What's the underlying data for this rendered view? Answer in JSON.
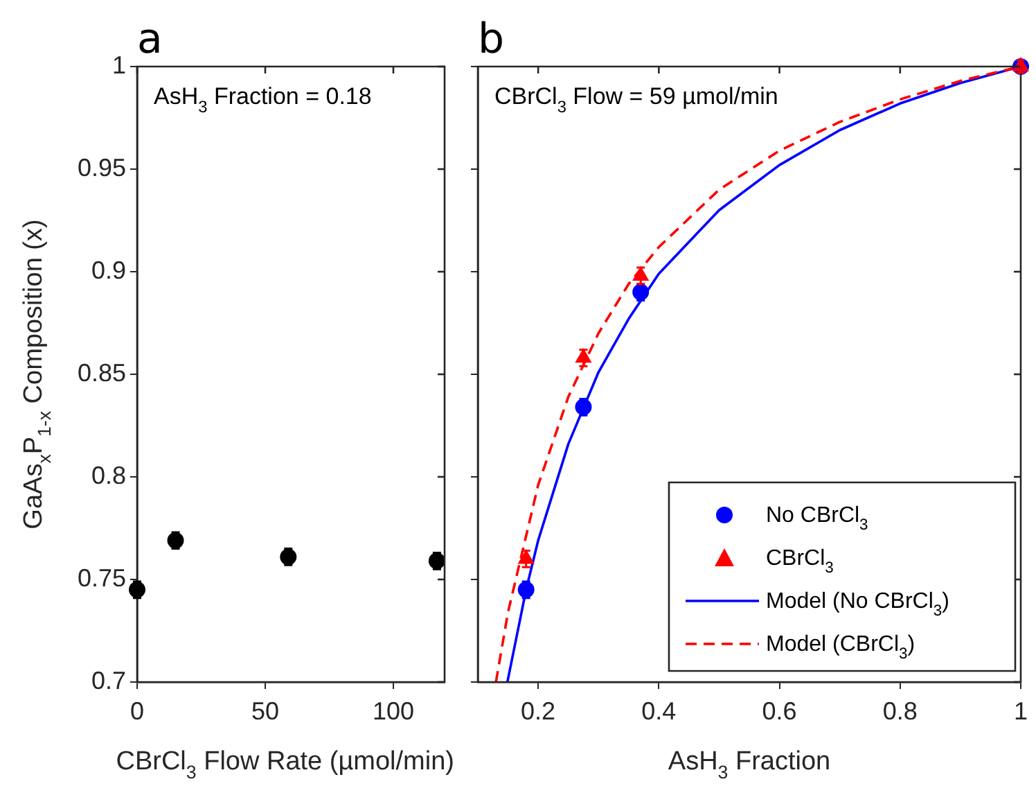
{
  "chart_data": [
    {
      "type": "scatter",
      "title": "a",
      "xlabel": "CBrCl$_{3}$ Flow Rate (µmol/min)",
      "ylabel": "GaAs$_{x}$P$_{1-x}$ Composition (x)",
      "annotations": [
        "AsH$_{3}$ Fraction = 0.18"
      ],
      "x": [
        0,
        15,
        59,
        117
      ],
      "values": [
        0.745,
        0.769,
        0.761,
        0.759
      ],
      "errors": [
        0.004,
        0.004,
        0.004,
        0.004
      ],
      "color": "#000000",
      "marker": "circle",
      "xlim": [
        0,
        120
      ],
      "xticks": [
        0,
        50,
        100
      ],
      "ylim": [
        0.7,
        1
      ],
      "yticks": [
        0.7,
        0.75,
        0.8,
        0.85,
        0.9,
        0.95,
        1
      ]
    },
    {
      "type": "scatter",
      "title": "b",
      "xlabel": "AsH$_{3}$ Fraction",
      "annotations": [
        "CBrCl$_{3}$ Flow = 59 µmol/min"
      ],
      "xlim": [
        0.1,
        1
      ],
      "xticks": [
        0.2,
        0.4,
        0.6,
        0.8,
        1
      ],
      "ylim": [
        0.7,
        1
      ],
      "yticks": [
        0.7,
        0.75,
        0.8,
        0.85,
        0.9,
        0.95,
        1
      ],
      "tick_labels": "x",
      "legend": "bottom right",
      "series": [
        {
          "name": "No CBrCl$_{3}$",
          "type": "scatter",
          "color": "#0000ff",
          "marker": "circle",
          "x": [
            0.18,
            0.275,
            0.37,
            1
          ],
          "values": [
            0.745,
            0.834,
            0.89,
            1
          ],
          "errors": [
            0.004,
            0.004,
            0.004,
            0.003
          ]
        },
        {
          "name": "CBrCl$_{3}$",
          "type": "scatter",
          "color": "#ff0000",
          "marker": "triangle",
          "x": [
            0.18,
            0.275,
            0.37,
            1
          ],
          "values": [
            0.76,
            0.858,
            0.898,
            1
          ],
          "errors": [
            0.004,
            0.004,
            0.004,
            0.003
          ]
        },
        {
          "name": "Model (No CBrCl$_{3}$)",
          "type": "line",
          "color": "#0000ff",
          "marker": "none",
          "line_style": "solid",
          "x": [
            0.149,
            0.18,
            0.2,
            0.25,
            0.3,
            0.35,
            0.4,
            0.5,
            0.6,
            0.7,
            0.8,
            0.9,
            1
          ],
          "values": [
            0.7,
            0.745,
            0.769,
            0.816,
            0.851,
            0.877,
            0.899,
            0.93,
            0.952,
            0.969,
            0.982,
            0.992,
            1
          ]
        },
        {
          "name": "Model (CBrCl$_{3}$)",
          "type": "line",
          "color": "#ff0000",
          "marker": "none",
          "line_style": "dashed",
          "x": [
            0.13,
            0.15,
            0.2,
            0.25,
            0.3,
            0.35,
            0.4,
            0.5,
            0.6,
            0.7,
            0.8,
            0.9,
            1
          ],
          "values": [
            0.7,
            0.734,
            0.796,
            0.839,
            0.87,
            0.894,
            0.912,
            0.94,
            0.959,
            0.973,
            0.984,
            0.993,
            1
          ]
        }
      ]
    }
  ]
}
